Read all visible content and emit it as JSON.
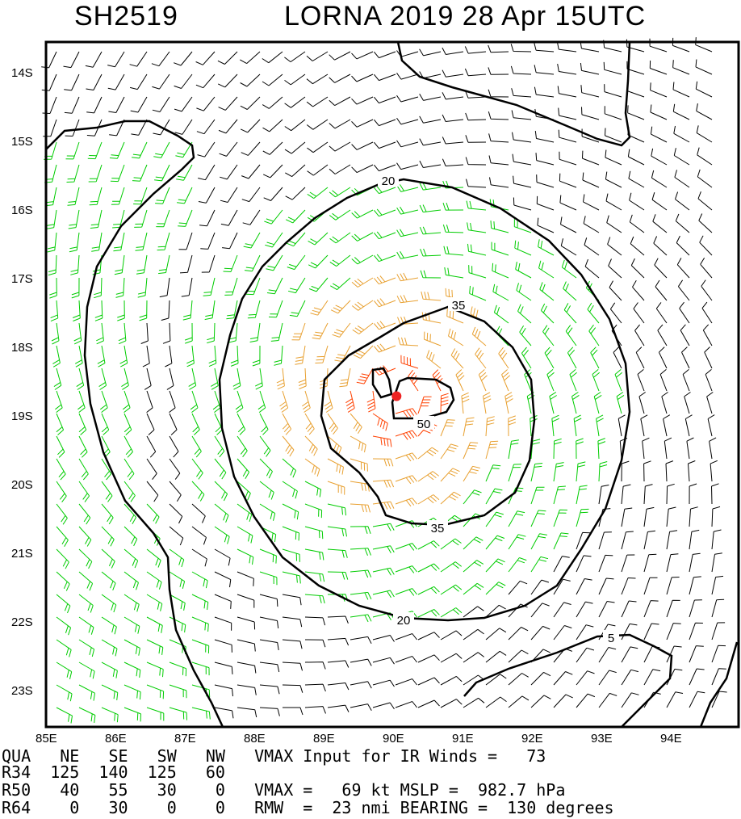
{
  "title": {
    "left": "SH2519",
    "right": "LORNA 2019 28 Apr 15UTC"
  },
  "map": {
    "lat_labels": [
      "14S",
      "15S",
      "16S",
      "17S",
      "18S",
      "19S",
      "20S",
      "21S",
      "22S",
      "23S"
    ],
    "lon_labels": [
      "85E",
      "86E",
      "87E",
      "88E",
      "89E",
      "90E",
      "91E",
      "92E",
      "93E",
      "94E"
    ],
    "contour_labels": {
      "c5": "5",
      "c20_top": "20",
      "c20_bottom": "20",
      "c35_top": "35",
      "c35_bottom": "35",
      "c50": "50"
    },
    "colors": {
      "low": "#000000",
      "mid": "#00cc00",
      "high": "#e8a030",
      "core": "#ff4000",
      "center": "#ee2222"
    },
    "center": {
      "lat": -18.55,
      "lon": 89.95
    }
  },
  "footer": {
    "line1": "QUA   NE   SE   SW   NW   VMAX Input for IR Winds =   73",
    "line2": "R34  125  140  125   60",
    "line3": "R50   40   55   30    0   VMAX =   69 kt MSLP =  982.7 hPa",
    "line4": "R64    0   30    0    0   RMW  =  23 nmi BEARING =  130 degrees"
  }
}
